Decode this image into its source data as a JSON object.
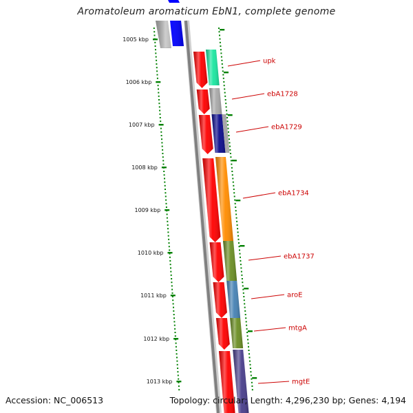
{
  "title": "Aromatoleum aromaticum EbN1, complete genome",
  "footer": {
    "accession": "Accession: NC_006513",
    "topology": "Topology: circular; Length: 4,296,230 bp; Genes: 4,194"
  },
  "ticks": [
    {
      "label": "1005 kbp"
    },
    {
      "label": "1006 kbp"
    },
    {
      "label": "1007 kbp"
    },
    {
      "label": "1008 kbp"
    },
    {
      "label": "1009 kbp"
    },
    {
      "label": "1010 kbp"
    },
    {
      "label": "1011 kbp"
    },
    {
      "label": "1012 kbp"
    },
    {
      "label": "1013 kbp"
    }
  ],
  "genes": [
    {
      "label": "upk",
      "color": "#19e6a0"
    },
    {
      "label": "ebA1728",
      "color": "#a9a9a9"
    },
    {
      "label": "ebA1729",
      "color": "#0a0a8c"
    },
    {
      "label": "ebA1734",
      "color": "#ff8c00"
    },
    {
      "label": "ebA1737",
      "color": "#6b8e23"
    },
    {
      "label": "aroE",
      "color": "#4682b4"
    },
    {
      "label": "mtgA",
      "color": "#6b8e23"
    },
    {
      "label": "mgtE",
      "color": "#483d8b"
    }
  ],
  "colors": {
    "forward_strand": "#ff0000",
    "backbone": "#808080",
    "tick": "#008000",
    "label_line": "#cc0000"
  }
}
